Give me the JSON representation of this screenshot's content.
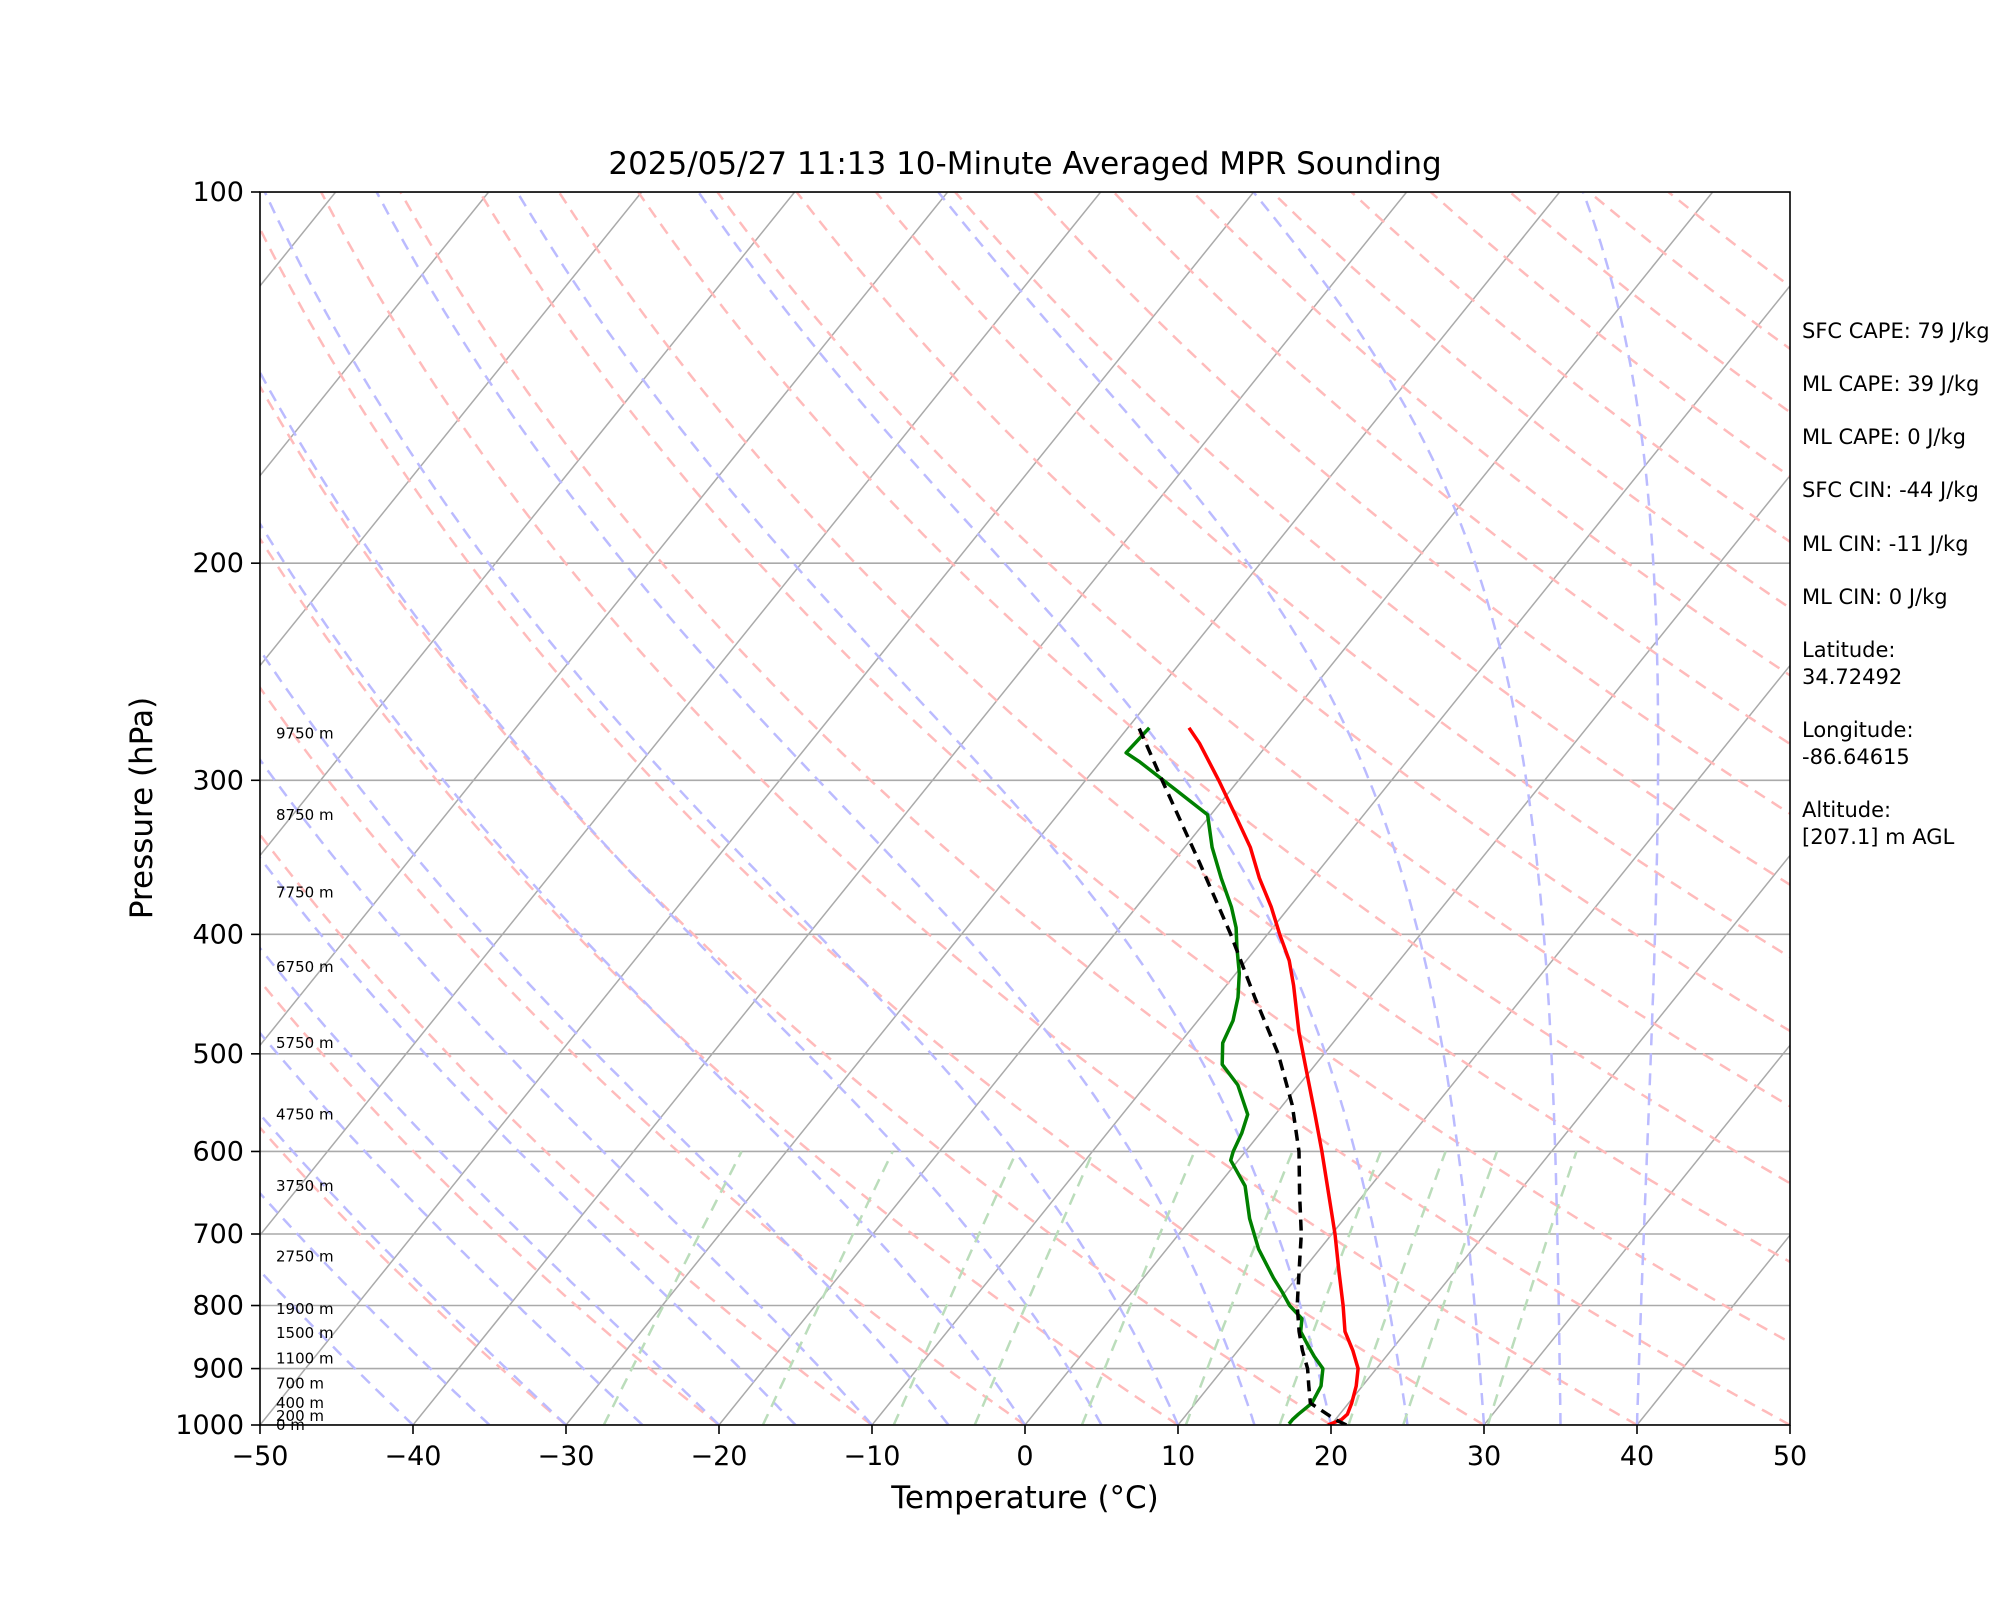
{
  "chart_data": {
    "type": "line",
    "title": "2025/05/27 11:13 10-Minute Averaged MPR Sounding",
    "xlabel": "Temperature (°C)",
    "ylabel": "Pressure (hPa)",
    "xlim": [
      -50,
      50
    ],
    "ylim": [
      1000,
      100
    ],
    "y_scale": "log",
    "skew": 45,
    "x_ticks": [
      "−50",
      "−40",
      "−30",
      "−20",
      "−10",
      "0",
      "10",
      "20",
      "30",
      "40",
      "50"
    ],
    "y_ticks": [
      "1000",
      "900",
      "800",
      "700",
      "600",
      "500",
      "400",
      "300",
      "200",
      "100"
    ],
    "series": [
      {
        "color": "#ff0000",
        "style": "solid",
        "pressure": [
          1000,
          990,
          980,
          960,
          930,
          900,
          870,
          840,
          800,
          750,
          700,
          650,
          600,
          560,
          520,
          480,
          440,
          420,
          400,
          380,
          360,
          340,
          320,
          300,
          280,
          272
        ],
        "temperature": [
          19.8,
          20.4,
          20.5,
          20.2,
          19.6,
          18.8,
          17.5,
          16.0,
          14.5,
          12.4,
          10.2,
          7.7,
          5.0,
          2.6,
          0.0,
          -2.8,
          -5.6,
          -7.2,
          -9.2,
          -11.2,
          -13.5,
          -15.7,
          -18.4,
          -21.3,
          -24.5,
          -26.0
        ]
      },
      {
        "color": "#008000",
        "style": "solid",
        "pressure": [
          998,
          990,
          980,
          960,
          930,
          900,
          880,
          860,
          840,
          820,
          800,
          780,
          760,
          720,
          680,
          640,
          610,
          600,
          580,
          560,
          530,
          510,
          490,
          470,
          450,
          430,
          410,
          395,
          380,
          360,
          340,
          320,
          305,
          290,
          285,
          272
        ],
        "temperature": [
          17.2,
          17.2,
          17.3,
          17.6,
          17.3,
          16.5,
          15.3,
          14.2,
          13.1,
          12.5,
          11.0,
          9.8,
          8.5,
          6.0,
          3.8,
          1.8,
          -0.5,
          -0.8,
          -1.2,
          -1.8,
          -4.0,
          -6.1,
          -7.2,
          -7.7,
          -8.6,
          -9.8,
          -11.3,
          -12.4,
          -13.8,
          -16.0,
          -18.2,
          -20.2,
          -23.7,
          -27.4,
          -28.8,
          -28.6
        ]
      },
      {
        "color": "#000000",
        "style": "dashed",
        "pressure": [
          1000,
          990,
          960,
          930,
          900,
          870,
          840,
          800,
          750,
          700,
          650,
          600,
          550,
          500,
          450,
          400,
          350,
          300,
          280,
          270
        ],
        "temperature": [
          21.0,
          20.0,
          17.5,
          16.5,
          15.5,
          14.2,
          13.0,
          11.5,
          9.8,
          8.0,
          5.8,
          3.5,
          0.6,
          -3.0,
          -7.5,
          -12.4,
          -18.2,
          -25.0,
          -28.0,
          -29.6
        ]
      }
    ],
    "height_labels": [
      {
        "text": "0 m",
        "pressure": 1000
      },
      {
        "text": "200 m",
        "pressure": 983
      },
      {
        "text": "400 m",
        "pressure": 960
      },
      {
        "text": "700 m",
        "pressure": 925
      },
      {
        "text": "1100 m",
        "pressure": 883
      },
      {
        "text": "1500 m",
        "pressure": 842
      },
      {
        "text": "1900 m",
        "pressure": 805
      },
      {
        "text": "2750 m",
        "pressure": 730
      },
      {
        "text": "3750 m",
        "pressure": 640
      },
      {
        "text": "4750 m",
        "pressure": 560
      },
      {
        "text": "5750 m",
        "pressure": 490
      },
      {
        "text": "6750 m",
        "pressure": 425
      },
      {
        "text": "7750 m",
        "pressure": 370
      },
      {
        "text": "8750 m",
        "pressure": 320
      },
      {
        "text": "9750 m",
        "pressure": 275
      }
    ],
    "reference_lines": {
      "isotherm_color": "#aaaaaa",
      "dry_adiabat_color": "#ffbbbb",
      "moist_adiabat_color": "#bbbbff",
      "mixing_ratio_color": "#bbddbb"
    },
    "annotations": [
      "SFC CAPE: 79 J/kg",
      "ML CAPE: 39 J/kg",
      "ML CAPE: 0 J/kg",
      "SFC CIN: -44 J/kg",
      "ML CIN: -11 J/kg",
      "ML CIN: 0 J/kg",
      "Latitude:",
      "34.72492",
      "Longitude:",
      "-86.64615",
      "Altitude:",
      "[207.1] m AGL"
    ],
    "grid": true
  }
}
